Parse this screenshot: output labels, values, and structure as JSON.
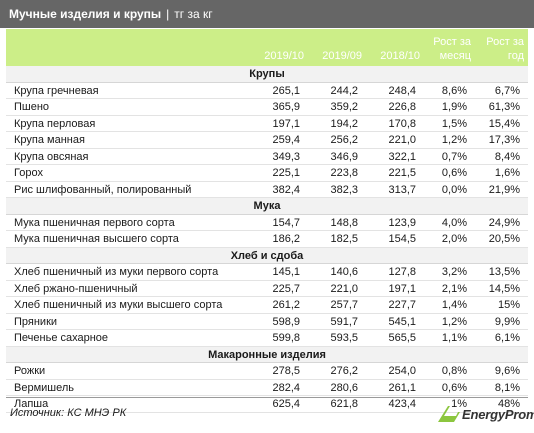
{
  "title": {
    "main": "Мучные изделия и крупы",
    "separator": "|",
    "unit": "тг за кг"
  },
  "columns": {
    "c1": "2019/10",
    "c2": "2019/09",
    "c3": "2018/10",
    "c4_line1": "Рост за",
    "c4_line2": "месяц",
    "c5_line1": "Рост за",
    "c5_line2": "год"
  },
  "sections": [
    {
      "title": "Крупы",
      "rows": [
        {
          "name": "Крупа гречневая",
          "v1": "265,1",
          "v2": "244,2",
          "v3": "248,4",
          "m": "8,6%",
          "y": "6,7%"
        },
        {
          "name": "Пшено",
          "v1": "365,9",
          "v2": "359,2",
          "v3": "226,8",
          "m": "1,9%",
          "y": "61,3%"
        },
        {
          "name": "Крупа перловая",
          "v1": "197,1",
          "v2": "194,2",
          "v3": "170,8",
          "m": "1,5%",
          "y": "15,4%"
        },
        {
          "name": "Крупа манная",
          "v1": "259,4",
          "v2": "256,2",
          "v3": "221,0",
          "m": "1,2%",
          "y": "17,3%"
        },
        {
          "name": "Крупа овсяная",
          "v1": "349,3",
          "v2": "346,9",
          "v3": "322,1",
          "m": "0,7%",
          "y": "8,4%"
        },
        {
          "name": "Горох",
          "v1": "225,1",
          "v2": "223,8",
          "v3": "221,5",
          "m": "0,6%",
          "y": "1,6%"
        },
        {
          "name": "Рис шлифованный, полированный",
          "v1": "382,4",
          "v2": "382,3",
          "v3": "313,7",
          "m": "0,0%",
          "y": "21,9%"
        }
      ]
    },
    {
      "title": "Мука",
      "rows": [
        {
          "name": "Мука пшеничная первого сорта",
          "v1": "154,7",
          "v2": "148,8",
          "v3": "123,9",
          "m": "4,0%",
          "y": "24,9%"
        },
        {
          "name": "Мука пшеничная высшего сорта",
          "v1": "186,2",
          "v2": "182,5",
          "v3": "154,5",
          "m": "2,0%",
          "y": "20,5%"
        }
      ]
    },
    {
      "title": "Хлеб и сдоба",
      "rows": [
        {
          "name": "Хлеб пшеничный из муки первого сорта",
          "v1": "145,1",
          "v2": "140,6",
          "v3": "127,8",
          "m": "3,2%",
          "y": "13,5%"
        },
        {
          "name": "Хлеб ржано-пшеничный",
          "v1": "225,7",
          "v2": "221,0",
          "v3": "197,1",
          "m": "2,1%",
          "y": "14,5%"
        },
        {
          "name": "Хлеб пшеничный из муки высшего сорта",
          "v1": "261,2",
          "v2": "257,7",
          "v3": "227,7",
          "m": "1,4%",
          "y": "15%"
        },
        {
          "name": "Пряники",
          "v1": "598,9",
          "v2": "591,7",
          "v3": "545,1",
          "m": "1,2%",
          "y": "9,9%"
        },
        {
          "name": "Печенье сахарное",
          "v1": "599,8",
          "v2": "593,5",
          "v3": "565,5",
          "m": "1,1%",
          "y": "6,1%"
        }
      ]
    },
    {
      "title": "Макаронные изделия",
      "rows": [
        {
          "name": "Рожки",
          "v1": "278,5",
          "v2": "276,2",
          "v3": "254,0",
          "m": "0,8%",
          "y": "9,6%"
        },
        {
          "name": "Вермишель",
          "v1": "282,4",
          "v2": "280,6",
          "v3": "261,1",
          "m": "0,6%",
          "y": "8,1%"
        },
        {
          "name": "Лапша",
          "v1": "625,4",
          "v2": "621,8",
          "v3": "423,4",
          "m": "1%",
          "y": "48%"
        }
      ]
    }
  ],
  "footer": {
    "source_label": "Источник:",
    "source_value": "КС МНЭ РК",
    "logo_text": "EnergyProm",
    "logo_color": "#8cc63f"
  }
}
